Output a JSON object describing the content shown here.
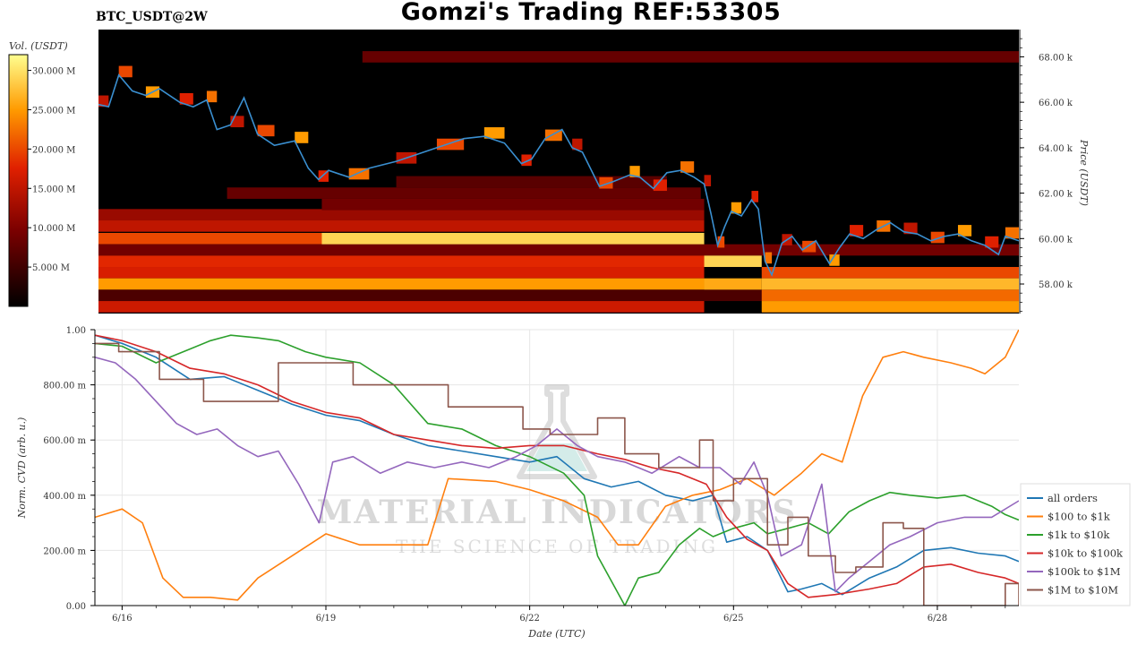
{
  "header": {
    "title": "Gomzi's Trading REF:53305",
    "pair": "BTC_USDT@2W"
  },
  "colors": {
    "all_orders": "#1f77b4",
    "100_to_1k": "#ff7f0e",
    "1k_to_10k": "#2ca02c",
    "10k_to_100k": "#d62728",
    "100k_to_1m": "#9467bd",
    "1m_to_10m": "#8c564b",
    "price_line": "#3a8fd0",
    "heatmap_bg": "#000000"
  },
  "watermark": {
    "main": "MATERIAL INDICATORS",
    "sub": "THE SCIENCE OF TRADING",
    "icon": "flask-icon"
  },
  "chart_data": [
    {
      "type": "heatmap",
      "colorbar": {
        "label": "Vol. (USDT)",
        "ticks": [
          "5.000 M",
          "10.000 M",
          "15.000 M",
          "20.000 M",
          "25.000 M",
          "30.000 M"
        ],
        "range": [
          0,
          32000000
        ]
      },
      "ylabel": "Price (USDT)",
      "y_ticks": [
        "58.00 k",
        "60.00 k",
        "62.00 k",
        "64.00 k",
        "66.00 k",
        "68.00 k"
      ],
      "ylim": [
        56700,
        69200
      ],
      "xlim": [
        15.6,
        29.2
      ],
      "price_series": {
        "x": [
          15.6,
          15.75,
          15.9,
          16.1,
          16.3,
          16.5,
          16.8,
          17.0,
          17.2,
          17.35,
          17.55,
          17.75,
          17.95,
          18.2,
          18.5,
          18.7,
          18.85,
          19.0,
          19.3,
          19.6,
          20.0,
          20.3,
          20.6,
          21.0,
          21.3,
          21.6,
          21.85,
          22.0,
          22.2,
          22.45,
          22.6,
          22.75,
          23.0,
          23.2,
          23.45,
          23.6,
          23.8,
          24.0,
          24.2,
          24.4,
          24.55,
          24.65,
          24.75,
          24.85,
          24.95,
          25.1,
          25.25,
          25.35,
          25.45,
          25.55,
          25.7,
          25.85,
          26.0,
          26.2,
          26.4,
          26.55,
          26.7,
          26.9,
          27.1,
          27.3,
          27.5,
          27.7,
          27.9,
          28.1,
          28.3,
          28.5,
          28.7,
          28.9,
          29.0,
          29.2
        ],
        "y": [
          65900,
          65800,
          67200,
          66500,
          66300,
          66600,
          66000,
          65800,
          66100,
          64800,
          65000,
          66200,
          64600,
          64100,
          64300,
          63100,
          62600,
          63000,
          62700,
          63100,
          63400,
          63700,
          64000,
          64400,
          64500,
          64200,
          63300,
          63500,
          64400,
          64800,
          64000,
          63800,
          62300,
          62500,
          62800,
          62700,
          62200,
          62900,
          63000,
          62700,
          62400,
          61100,
          59700,
          60500,
          61200,
          61000,
          61700,
          61300,
          59000,
          58400,
          59800,
          60100,
          59500,
          59900,
          58900,
          59600,
          60200,
          60000,
          60400,
          60700,
          60300,
          60200,
          59900,
          60100,
          60200,
          59900,
          59700,
          59300,
          60100,
          59900
        ]
      },
      "volume_bands": [
        {
          "from": 15.6,
          "to": 24.55,
          "price": 61050,
          "vol": 12000000
        },
        {
          "from": 15.6,
          "to": 24.55,
          "price": 60550,
          "vol": 15000000
        },
        {
          "from": 15.6,
          "to": 24.55,
          "price": 60000,
          "vol": 20000000
        },
        {
          "from": 15.6,
          "to": 29.2,
          "price": 59500,
          "vol": 9000000
        },
        {
          "from": 15.6,
          "to": 24.55,
          "price": 59000,
          "vol": 18000000
        },
        {
          "from": 15.6,
          "to": 24.55,
          "price": 58500,
          "vol": 17000000
        },
        {
          "from": 15.6,
          "to": 24.55,
          "price": 58000,
          "vol": 25000000
        },
        {
          "from": 15.6,
          "to": 29.2,
          "price": 57500,
          "vol": 6000000
        },
        {
          "from": 15.6,
          "to": 24.55,
          "price": 57000,
          "vol": 16000000
        },
        {
          "from": 18.9,
          "to": 24.55,
          "price": 60000,
          "vol": 29000000
        },
        {
          "from": 24.55,
          "to": 25.4,
          "price": 59000,
          "vol": 29000000
        },
        {
          "from": 24.55,
          "to": 25.4,
          "price": 58000,
          "vol": 26000000
        },
        {
          "from": 25.4,
          "to": 29.2,
          "price": 58500,
          "vol": 20000000
        },
        {
          "from": 25.4,
          "to": 29.2,
          "price": 58000,
          "vol": 27000000
        },
        {
          "from": 25.4,
          "to": 29.2,
          "price": 57500,
          "vol": 22000000
        },
        {
          "from": 25.4,
          "to": 29.2,
          "price": 57000,
          "vol": 25000000
        },
        {
          "from": 18.9,
          "to": 24.55,
          "price": 61500,
          "vol": 9000000
        },
        {
          "from": 17.5,
          "to": 24.5,
          "price": 62000,
          "vol": 8000000
        },
        {
          "from": 19.5,
          "to": 29.2,
          "price": 68000,
          "vol": 8000000
        },
        {
          "from": 20.0,
          "to": 24.0,
          "price": 62500,
          "vol": 7000000
        }
      ]
    },
    {
      "type": "line",
      "xlabel": "Date (UTC)",
      "ylabel": "Norm. CVD (arb. u.)",
      "x_ticks": [
        {
          "label": "6/16",
          "value": 16
        },
        {
          "label": "6/19",
          "value": 19
        },
        {
          "label": "6/22",
          "value": 22
        },
        {
          "label": "6/25",
          "value": 25
        },
        {
          "label": "6/28",
          "value": 28
        }
      ],
      "y_ticks": [
        {
          "label": "0.00",
          "value": 0
        },
        {
          "label": "200.00 m",
          "value": 0.2
        },
        {
          "label": "400.00 m",
          "value": 0.4
        },
        {
          "label": "600.00 m",
          "value": 0.6
        },
        {
          "label": "800.00 m",
          "value": 0.8
        },
        {
          "label": "1.00",
          "value": 1.0
        }
      ],
      "xlim": [
        15.6,
        29.2
      ],
      "ylim": [
        0,
        1
      ],
      "grid": true,
      "legend_position": "right",
      "series": [
        {
          "name": "all orders",
          "color_key": "all_orders",
          "x": [
            15.6,
            16.0,
            16.5,
            17.0,
            17.5,
            18.0,
            18.5,
            19.0,
            19.5,
            20.0,
            20.5,
            21.0,
            21.5,
            22.0,
            22.4,
            22.8,
            23.2,
            23.6,
            24.0,
            24.4,
            24.7,
            24.9,
            25.2,
            25.5,
            25.8,
            26.0,
            26.3,
            26.6,
            27.0,
            27.4,
            27.8,
            28.2,
            28.6,
            29.0,
            29.2
          ],
          "y": [
            0.98,
            0.95,
            0.9,
            0.82,
            0.83,
            0.78,
            0.73,
            0.69,
            0.67,
            0.62,
            0.58,
            0.56,
            0.54,
            0.52,
            0.54,
            0.46,
            0.43,
            0.45,
            0.4,
            0.38,
            0.4,
            0.23,
            0.25,
            0.2,
            0.05,
            0.06,
            0.08,
            0.04,
            0.1,
            0.14,
            0.2,
            0.21,
            0.19,
            0.18,
            0.16
          ]
        },
        {
          "name": "$100 to $1k",
          "color_key": "100_to_1k",
          "x": [
            15.6,
            16.0,
            16.3,
            16.6,
            16.9,
            17.3,
            17.7,
            18.0,
            18.5,
            19.0,
            19.5,
            20.0,
            20.5,
            20.8,
            21.5,
            22.0,
            22.5,
            23.0,
            23.3,
            23.6,
            24.0,
            24.4,
            24.8,
            25.2,
            25.6,
            26.0,
            26.3,
            26.6,
            26.9,
            27.2,
            27.5,
            27.8,
            28.2,
            28.5,
            28.7,
            29.0,
            29.2
          ],
          "y": [
            0.32,
            0.35,
            0.3,
            0.1,
            0.03,
            0.03,
            0.02,
            0.1,
            0.18,
            0.26,
            0.22,
            0.22,
            0.22,
            0.46,
            0.45,
            0.42,
            0.38,
            0.32,
            0.22,
            0.22,
            0.36,
            0.4,
            0.42,
            0.46,
            0.4,
            0.48,
            0.55,
            0.52,
            0.76,
            0.9,
            0.92,
            0.9,
            0.88,
            0.86,
            0.84,
            0.9,
            1.0
          ]
        },
        {
          "name": "$1k to $10k",
          "color_key": "1k_to_10k",
          "x": [
            15.6,
            16.0,
            16.5,
            17.0,
            17.3,
            17.6,
            18.0,
            18.3,
            18.7,
            19.0,
            19.5,
            20.0,
            20.5,
            21.0,
            21.5,
            22.0,
            22.5,
            22.8,
            23.0,
            23.4,
            23.6,
            23.9,
            24.2,
            24.5,
            24.7,
            25.0,
            25.3,
            25.5,
            25.8,
            26.1,
            26.4,
            26.7,
            27.0,
            27.3,
            27.6,
            28.0,
            28.4,
            28.8,
            29.0,
            29.2
          ],
          "y": [
            0.95,
            0.94,
            0.88,
            0.93,
            0.96,
            0.98,
            0.97,
            0.96,
            0.92,
            0.9,
            0.88,
            0.8,
            0.66,
            0.64,
            0.58,
            0.54,
            0.48,
            0.4,
            0.18,
            0.0,
            0.1,
            0.12,
            0.22,
            0.28,
            0.25,
            0.28,
            0.3,
            0.26,
            0.28,
            0.3,
            0.26,
            0.34,
            0.38,
            0.41,
            0.4,
            0.39,
            0.4,
            0.36,
            0.33,
            0.31
          ]
        },
        {
          "name": "$10k to $100k",
          "color_key": "10k_to_100k",
          "x": [
            15.6,
            16.0,
            16.5,
            17.0,
            17.5,
            18.0,
            18.5,
            19.0,
            19.5,
            20.0,
            20.5,
            21.0,
            21.5,
            22.0,
            22.5,
            23.0,
            23.4,
            23.8,
            24.2,
            24.6,
            24.9,
            25.2,
            25.5,
            25.8,
            26.1,
            26.5,
            27.0,
            27.4,
            27.8,
            28.2,
            28.6,
            29.0,
            29.2
          ],
          "y": [
            0.98,
            0.96,
            0.92,
            0.86,
            0.84,
            0.8,
            0.74,
            0.7,
            0.68,
            0.62,
            0.6,
            0.58,
            0.57,
            0.58,
            0.58,
            0.55,
            0.53,
            0.5,
            0.48,
            0.44,
            0.32,
            0.24,
            0.2,
            0.08,
            0.03,
            0.04,
            0.06,
            0.08,
            0.14,
            0.15,
            0.12,
            0.1,
            0.08
          ]
        },
        {
          "name": "$100k to $1M",
          "color_key": "100k_to_1m",
          "x": [
            15.6,
            15.9,
            16.2,
            16.5,
            16.8,
            17.1,
            17.4,
            17.7,
            18.0,
            18.3,
            18.6,
            18.9,
            19.1,
            19.4,
            19.8,
            20.2,
            20.6,
            21.0,
            21.4,
            21.8,
            22.1,
            22.4,
            22.7,
            23.0,
            23.4,
            23.8,
            24.2,
            24.5,
            24.8,
            25.1,
            25.3,
            25.5,
            25.7,
            26.0,
            26.3,
            26.5,
            26.7,
            27.0,
            27.3,
            27.6,
            28.0,
            28.4,
            28.8,
            29.2
          ],
          "y": [
            0.9,
            0.88,
            0.82,
            0.74,
            0.66,
            0.62,
            0.64,
            0.58,
            0.54,
            0.56,
            0.44,
            0.3,
            0.52,
            0.54,
            0.48,
            0.52,
            0.5,
            0.52,
            0.5,
            0.54,
            0.58,
            0.64,
            0.58,
            0.54,
            0.52,
            0.48,
            0.54,
            0.5,
            0.5,
            0.44,
            0.52,
            0.4,
            0.18,
            0.22,
            0.44,
            0.05,
            0.1,
            0.16,
            0.22,
            0.25,
            0.3,
            0.32,
            0.32,
            0.38
          ]
        },
        {
          "name": "$1M to $10M",
          "color_key": "1m_to_10m",
          "step": true,
          "x": [
            15.6,
            15.95,
            16.55,
            17.2,
            18.3,
            19.4,
            20.8,
            21.9,
            22.3,
            23.0,
            23.4,
            23.9,
            24.5,
            24.7,
            25.0,
            25.5,
            25.8,
            26.1,
            26.5,
            26.8,
            27.2,
            27.5,
            27.8,
            28.0,
            28.5,
            29.0,
            29.2
          ],
          "y": [
            0.95,
            0.92,
            0.82,
            0.74,
            0.88,
            0.8,
            0.72,
            0.64,
            0.62,
            0.68,
            0.55,
            0.5,
            0.6,
            0.38,
            0.46,
            0.22,
            0.32,
            0.18,
            0.12,
            0.14,
            0.3,
            0.28,
            0.0,
            0.0,
            0.0,
            0.08,
            0.0
          ]
        }
      ]
    }
  ]
}
